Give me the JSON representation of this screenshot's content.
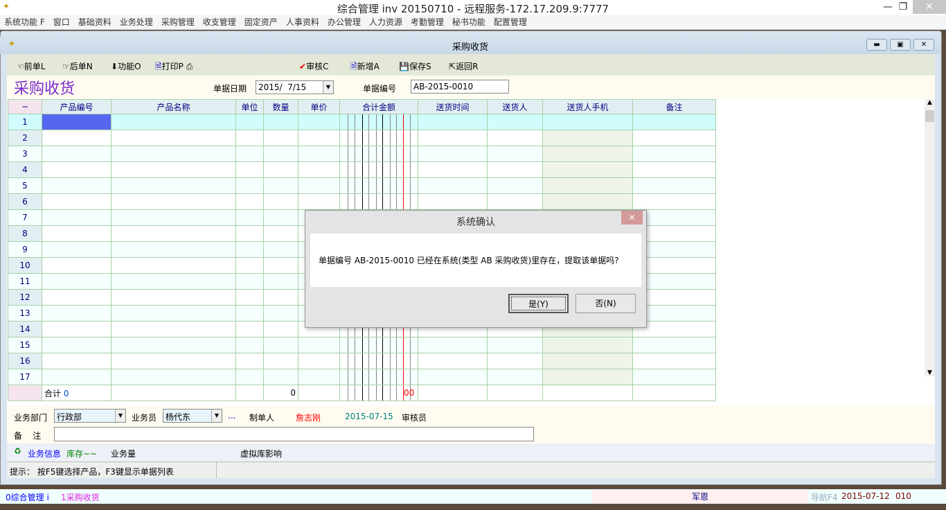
{
  "app": {
    "title": "综合管理 inv 20150710 - 远程服务-172.17.209.9:7777"
  },
  "menu": [
    "系统功能 F",
    "窗口",
    "基础资料",
    "业务处理",
    "采购管理",
    "收支管理",
    "固定资产",
    "人事资料",
    "办公管理",
    "人力资源",
    "考勤管理",
    "秘书功能",
    "配置管理"
  ],
  "window": {
    "title": "采购收货"
  },
  "toolbar": {
    "prev": "前单L",
    "next": "后单N",
    "func": "功能O",
    "print": "打印P",
    "audit": "审核C",
    "add": "新增A",
    "save": "保存S",
    "back": "返回R"
  },
  "header": {
    "page_title": "采购收货",
    "date_label": "单据日期",
    "date_value": "2015/  7/15",
    "no_label": "单据编号",
    "no_value": "AB-2015-0010"
  },
  "grid": {
    "corner": "−",
    "columns": [
      "产品编号",
      "产品名称",
      "单位",
      "数量",
      "单价",
      "合计金额",
      "送货时间",
      "送货人",
      "送货人手机",
      "备注"
    ],
    "rows": [
      "1",
      "2",
      "3",
      "4",
      "5",
      "6",
      "7",
      "8",
      "9",
      "10",
      "11",
      "12",
      "13",
      "14",
      "15",
      "16",
      "17"
    ],
    "total_label": "合计",
    "total_count": "0",
    "total_qty": "0",
    "total_amount": "00"
  },
  "form": {
    "dept_label": "业务部门",
    "dept_value": "行政部",
    "staff_label": "业务员",
    "staff_value": "杨代东",
    "more": "...",
    "maker_label": "制单人",
    "maker_value": "詹志刚",
    "date": "2015-07-15",
    "auditor_label": "审核员",
    "remark_label": "备    注",
    "remark_value": ""
  },
  "info": {
    "biz_info": "业务信息",
    "stock": "库存~~",
    "volume": "业务量",
    "virtual": "虚拟库影响"
  },
  "status": {
    "hint": "提示： 按F5键选择产品，F3键显示单据列表"
  },
  "taskbar": {
    "tab0": "0综合管理 i",
    "tab1": "1采购收货",
    "user": "军恩",
    "nav": "导航F4",
    "date": "2015-07-12",
    "code": "010"
  },
  "dialog": {
    "title": "系统确认",
    "message": "单据编号 AB-2015-0010 已经在系统(类型 AB 采购收货)里存在，提取该单据吗?",
    "yes": "是(Y)",
    "no": "否(N)"
  },
  "colors": {
    "title_purple": "#7b2ccc",
    "selected_cell": "#5567f0",
    "maker_red": "#ff0000",
    "date_teal": "#008080"
  }
}
